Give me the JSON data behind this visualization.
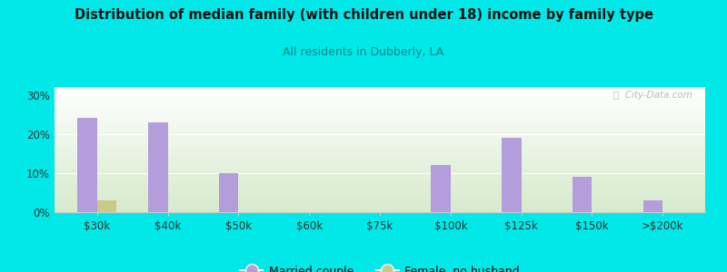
{
  "title": "Distribution of median family (with children under 18) income by family type",
  "subtitle": "All residents in Dubberly, LA",
  "categories": [
    "$30k",
    "$40k",
    "$50k",
    "$60k",
    "$75k",
    "$100k",
    "$125k",
    "$150k",
    ">$200k"
  ],
  "married_couple": [
    24,
    23,
    10,
    0,
    0,
    12,
    19,
    9,
    3
  ],
  "female_no_husband": [
    3,
    0,
    0,
    0,
    0,
    0,
    0,
    0,
    0
  ],
  "married_color": "#b39ddb",
  "female_color": "#c8ca8a",
  "bg_color": "#00e8e8",
  "title_color": "#111111",
  "subtitle_color": "#008888",
  "ylim": [
    0,
    32
  ],
  "bar_width": 0.28,
  "watermark": "ⓘ  City-Data.com"
}
